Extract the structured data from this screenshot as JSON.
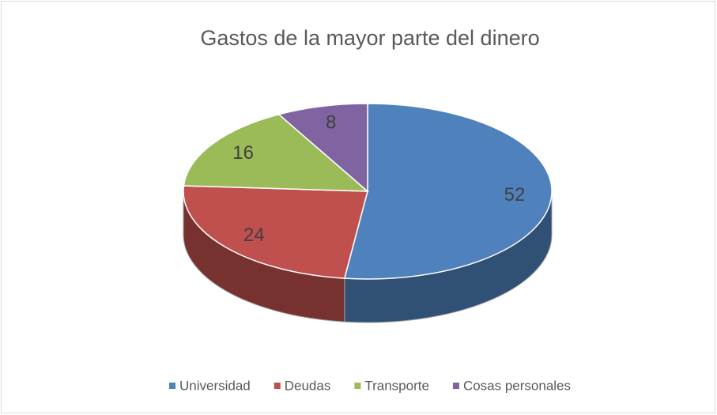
{
  "chart_data": {
    "type": "pie",
    "title": "Gastos de la mayor parte del dinero",
    "categories": [
      "Universidad",
      "Deudas",
      "Transporte",
      "Cosas personales"
    ],
    "values": [
      52,
      24,
      16,
      8
    ],
    "colors": [
      "#4f81bd",
      "#c0504d",
      "#9bbb59",
      "#8064a2"
    ],
    "legend": "bottom"
  }
}
